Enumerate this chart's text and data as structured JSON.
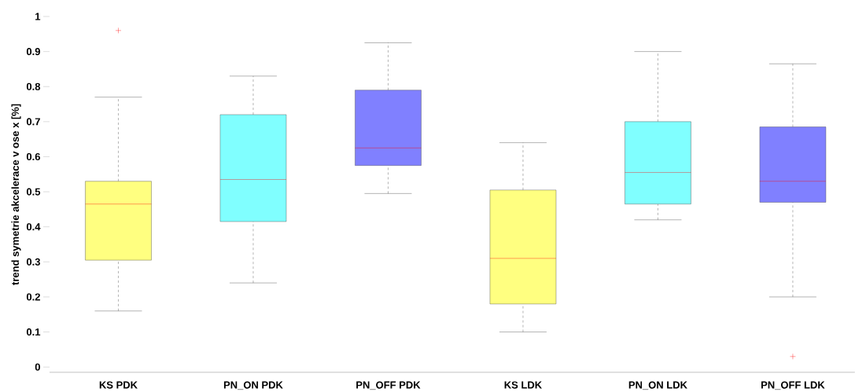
{
  "chart_data": {
    "type": "box",
    "ylabel": "trend symetrie akcelerace v ose x [%]",
    "categories": [
      "KS PDK",
      "PN_ON PDK",
      "PN_OFF PDK",
      "KS LDK",
      "PN_ON LDK",
      "PN_OFF LDK"
    ],
    "colors": [
      "#ffff80",
      "#80ffff",
      "#8080ff",
      "#ffff80",
      "#80ffff",
      "#8080ff"
    ],
    "boxes": [
      {
        "low": 0.16,
        "q1": 0.305,
        "median": 0.465,
        "q3": 0.53,
        "high": 0.77,
        "outliers": [
          0.96
        ]
      },
      {
        "low": 0.24,
        "q1": 0.415,
        "median": 0.535,
        "q3": 0.72,
        "high": 0.83
      },
      {
        "low": 0.495,
        "q1": 0.575,
        "median": 0.625,
        "q3": 0.79,
        "high": 0.925
      },
      {
        "low": 0.1,
        "q1": 0.18,
        "median": 0.31,
        "q3": 0.505,
        "high": 0.64
      },
      {
        "low": 0.42,
        "q1": 0.465,
        "median": 0.555,
        "q3": 0.7,
        "high": 0.9
      },
      {
        "low": 0.2,
        "q1": 0.47,
        "median": 0.53,
        "q3": 0.685,
        "high": 0.865,
        "outliers": [
          0.03
        ]
      }
    ],
    "ylim": [
      -0.015,
      1.0
    ],
    "yticks": [
      0,
      0.1,
      0.2,
      0.3,
      0.4,
      0.5,
      0.6,
      0.7,
      0.8,
      0.9,
      1
    ]
  }
}
